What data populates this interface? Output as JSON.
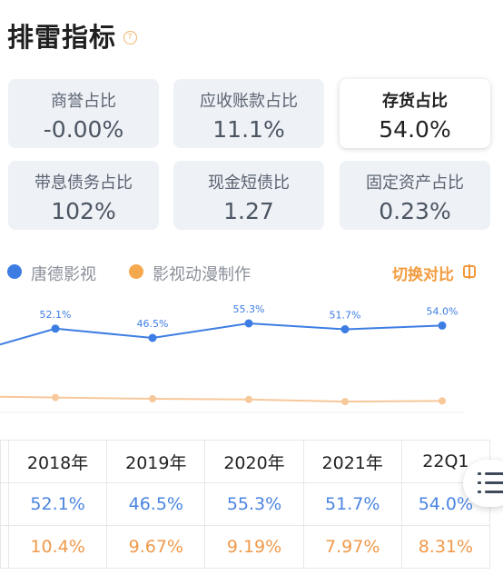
{
  "title": "排雷指标",
  "help_icon_glyph": "?",
  "metrics": [
    {
      "label": "商誉占比",
      "value": "-0.00%",
      "active": false
    },
    {
      "label": "应收账款占比",
      "value": "11.1%",
      "active": false
    },
    {
      "label": "存货占比",
      "value": "54.0%",
      "active": true
    },
    {
      "label": "带息债务占比",
      "value": "102%",
      "active": false
    },
    {
      "label": "现金短债比",
      "value": "1.27",
      "active": false
    },
    {
      "label": "固定资产占比",
      "value": "0.23%",
      "active": false
    }
  ],
  "legend": {
    "company": "唐德影视",
    "industry": "影视动漫制作",
    "switch_label": "切换对比",
    "company_color": "#3d7de3",
    "industry_color": "#f5a94e"
  },
  "chart_data": {
    "type": "line",
    "x": [
      "2018年",
      "2019年",
      "2020年",
      "2021年",
      "22Q1"
    ],
    "series": [
      {
        "name": "唐德影视",
        "values": [
          52.1,
          46.5,
          55.3,
          51.7,
          54.0
        ],
        "labels": [
          "52.1%",
          "46.5%",
          "55.3%",
          "51.7%",
          "54.0%"
        ],
        "color": "#3d7de3"
      },
      {
        "name": "影视动漫制作",
        "values": [
          10.4,
          9.67,
          9.19,
          7.97,
          8.31
        ],
        "color": "#f7c89a"
      }
    ]
  },
  "table": {
    "headers": [
      "2018年",
      "2019年",
      "2020年",
      "2021年",
      "22Q1"
    ],
    "company_row": [
      "52.1%",
      "46.5%",
      "55.3%",
      "51.7%",
      "54.0%"
    ],
    "industry_row": [
      "10.4%",
      "9.67%",
      "9.19%",
      "7.97%",
      "8.31%"
    ]
  },
  "menu_icon": "list-menu-icon"
}
